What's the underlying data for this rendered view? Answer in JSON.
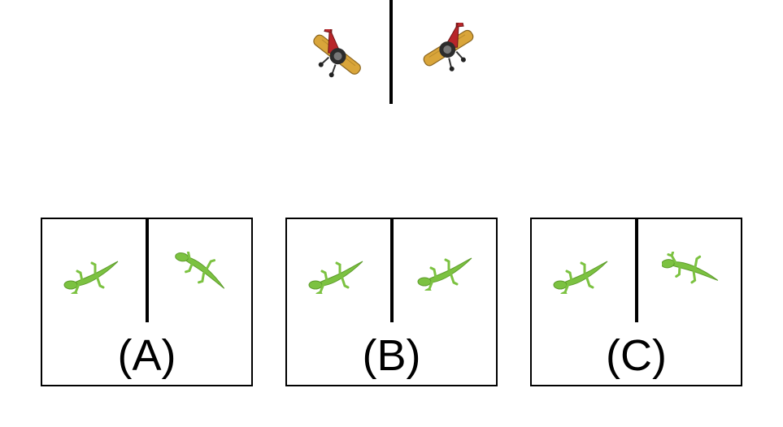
{
  "example": {
    "left_icon": "plane-icon",
    "right_icon": "plane-icon",
    "colors": {
      "plane_body": "#b8262a",
      "plane_wing": "#d9a53a",
      "plane_engine": "#2c2c2c"
    }
  },
  "options": [
    {
      "label": "(A)",
      "left_icon": "lizard-icon",
      "right_icon": "lizard-icon"
    },
    {
      "label": "(B)",
      "left_icon": "lizard-icon",
      "right_icon": "lizard-icon"
    },
    {
      "label": "(C)",
      "left_icon": "lizard-icon",
      "right_icon": "lizard-icon"
    }
  ],
  "colors": {
    "lizard": "#7cc241",
    "lizard_dark": "#5e9c2c",
    "border": "#000000"
  }
}
